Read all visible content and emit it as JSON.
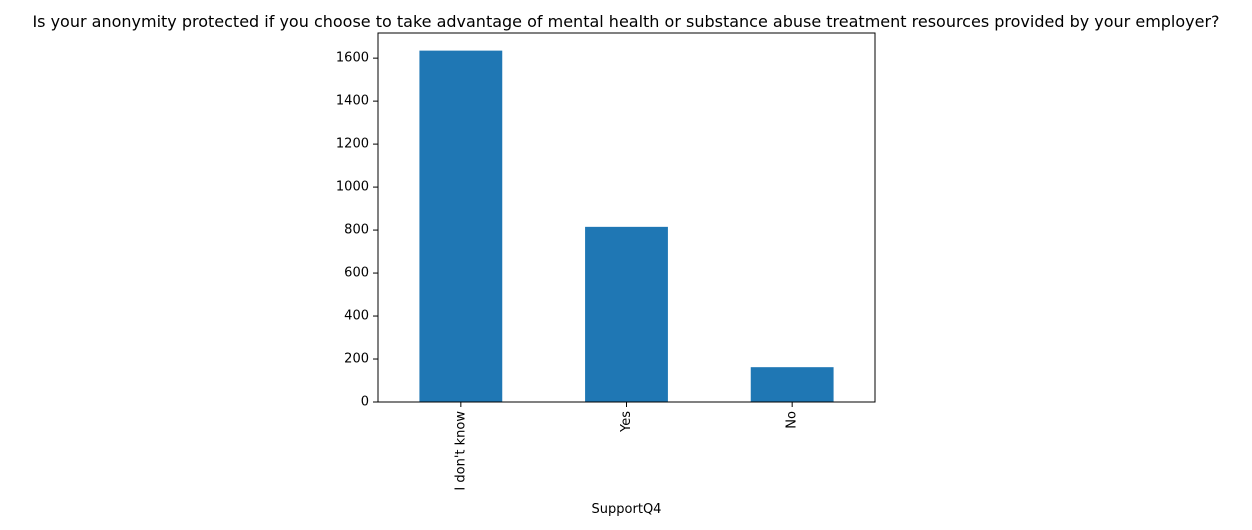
{
  "chart_data": {
    "type": "bar",
    "title": "Is your anonymity protected if you choose to take advantage of mental health or substance abuse treatment resources provided by your employer?",
    "xlabel": "SupportQ4",
    "ylabel": "",
    "categories": [
      "I don't know",
      "Yes",
      "No"
    ],
    "values": [
      1635,
      815,
      162
    ],
    "ylim": [
      0,
      1717
    ],
    "yticks": [
      0,
      200,
      400,
      600,
      800,
      1000,
      1200,
      1400,
      1600
    ],
    "xtick_rotation": "vertical",
    "grid": false,
    "legend": "none",
    "colors": {
      "bar": "#1f77b4",
      "axis": "#000000",
      "background": "#ffffff"
    }
  }
}
